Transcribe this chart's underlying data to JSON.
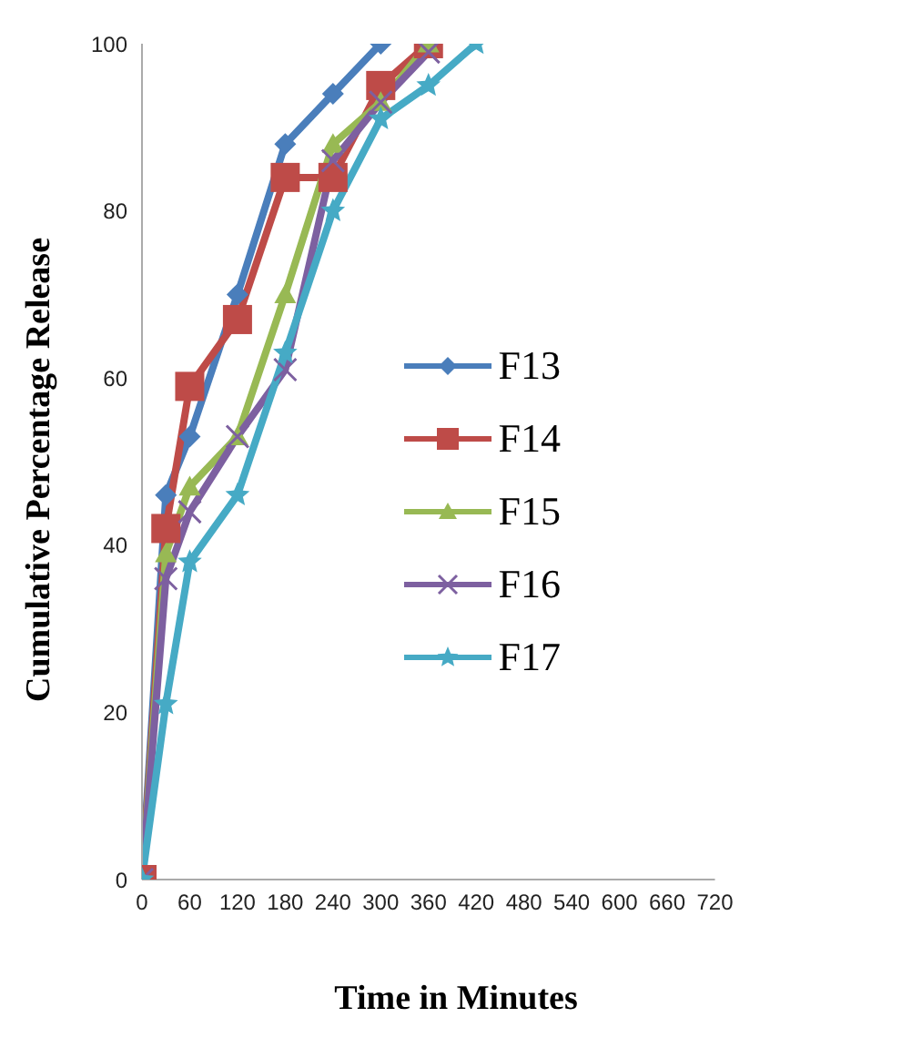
{
  "chart_data": {
    "type": "line",
    "xlabel": "Time in Minutes",
    "ylabel": "Cumulative Percentage Release",
    "xlim": [
      0,
      720
    ],
    "xticks": [
      0,
      60,
      120,
      180,
      240,
      300,
      360,
      420,
      480,
      540,
      600,
      660,
      720
    ],
    "ylim": [
      0,
      100
    ],
    "yticks": [
      0,
      20,
      40,
      60,
      80,
      100
    ],
    "grid": false,
    "legend": "right",
    "series": [
      {
        "name": "F13",
        "color": "#4a7ebb",
        "marker": "diamond",
        "x": [
          0,
          30,
          60,
          120,
          180,
          240,
          300
        ],
        "values": [
          0,
          46,
          53,
          70,
          88,
          94,
          100
        ]
      },
      {
        "name": "F14",
        "color": "#be4b48",
        "marker": "square",
        "x": [
          0,
          30,
          60,
          120,
          180,
          240,
          300,
          360
        ],
        "values": [
          0,
          42,
          59,
          67,
          84,
          84,
          95,
          100
        ]
      },
      {
        "name": "F15",
        "color": "#98b954",
        "marker": "triangle",
        "x": [
          0,
          30,
          60,
          120,
          180,
          240,
          300,
          360
        ],
        "values": [
          0,
          39,
          47,
          53,
          70,
          88,
          93,
          100
        ]
      },
      {
        "name": "F16",
        "color": "#7d60a0",
        "marker": "cross",
        "x": [
          0,
          30,
          60,
          120,
          180,
          240,
          300,
          360
        ],
        "values": [
          0,
          36,
          44,
          53,
          61,
          86,
          93,
          99
        ]
      },
      {
        "name": "F17",
        "color": "#46aac5",
        "marker": "star",
        "x": [
          0,
          30,
          60,
          120,
          180,
          240,
          300,
          360,
          420
        ],
        "values": [
          0,
          21,
          38,
          46,
          63,
          80,
          91,
          95,
          100
        ]
      }
    ]
  }
}
